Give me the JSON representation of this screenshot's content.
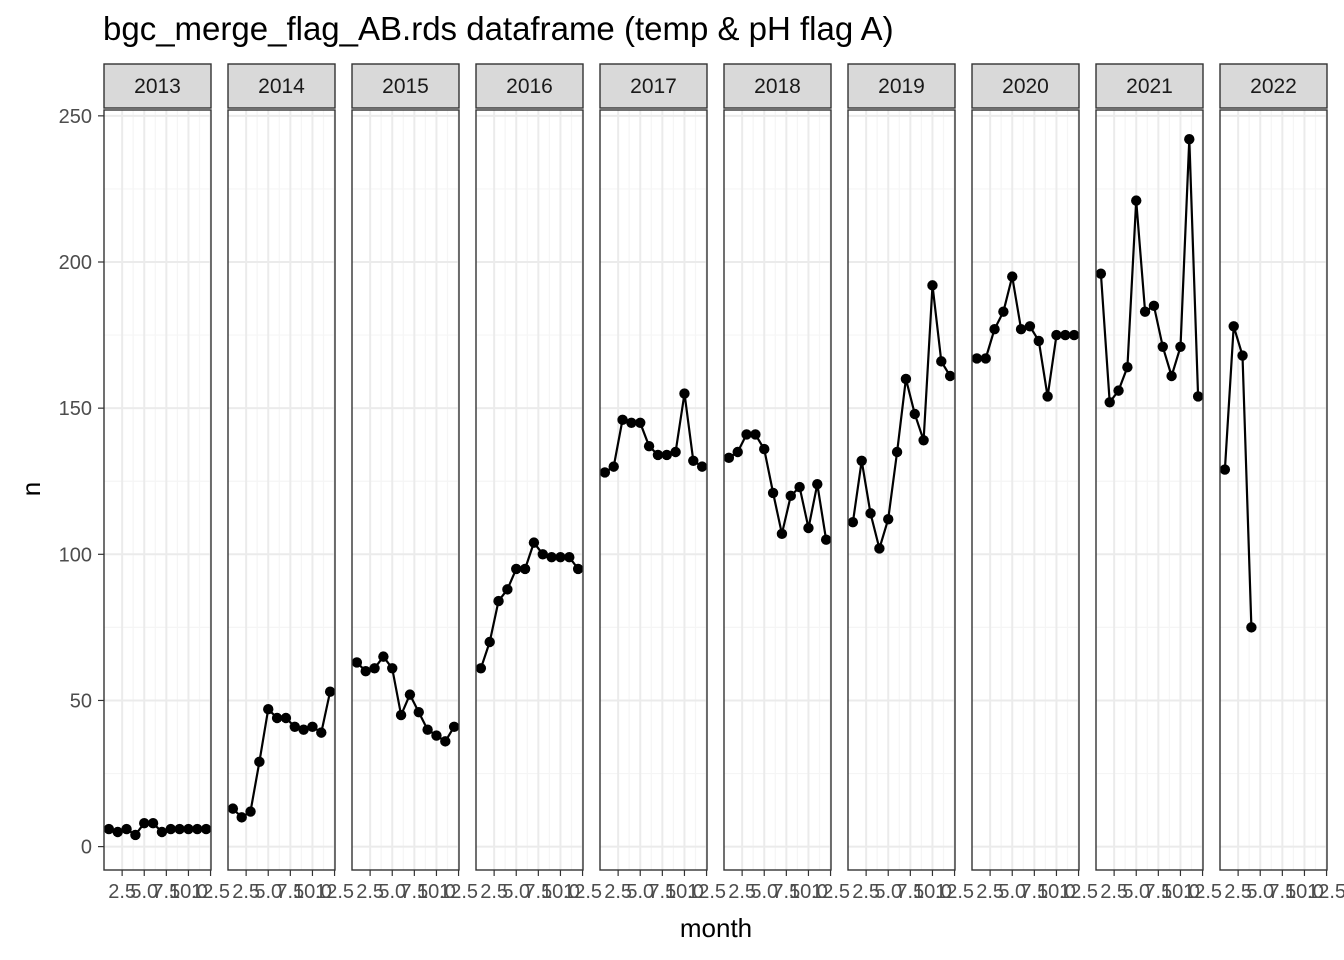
{
  "chart_data": {
    "type": "line",
    "title": "bgc_merge_flag_AB.rds dataframe (temp & pH flag A)",
    "xlabel": "month",
    "ylabel": "n",
    "xlim": [
      0.45,
      12.55
    ],
    "ylim": [
      -8,
      252
    ],
    "x_ticks": [
      2.5,
      5.0,
      7.5,
      10.0,
      12.5
    ],
    "x_tick_labels": [
      "2.5",
      "5.0",
      "7.5",
      "10.0",
      "12.5"
    ],
    "y_ticks": [
      0,
      50,
      100,
      150,
      200,
      250
    ],
    "y_tick_labels": [
      "0",
      "50",
      "100",
      "150",
      "200",
      "250"
    ],
    "grid": true,
    "facet_by": "year",
    "panels": [
      {
        "label": "2013",
        "x": [
          1,
          2,
          3,
          4,
          5,
          6,
          7,
          8,
          9,
          10,
          11,
          12
        ],
        "values": [
          6,
          5,
          6,
          4,
          8,
          8,
          5,
          6,
          6,
          6,
          6,
          6
        ]
      },
      {
        "label": "2014",
        "x": [
          1,
          2,
          3,
          4,
          5,
          6,
          7,
          8,
          9,
          10,
          11,
          12
        ],
        "values": [
          13,
          10,
          12,
          29,
          47,
          44,
          44,
          41,
          40,
          41,
          39,
          53
        ]
      },
      {
        "label": "2015",
        "x": [
          1,
          2,
          3,
          4,
          5,
          6,
          7,
          8,
          9,
          10,
          11,
          12
        ],
        "values": [
          63,
          60,
          61,
          65,
          61,
          45,
          52,
          46,
          40,
          38,
          36,
          41
        ]
      },
      {
        "label": "2016",
        "x": [
          1,
          2,
          3,
          4,
          5,
          6,
          7,
          8,
          9,
          10,
          11,
          12
        ],
        "values": [
          61,
          70,
          84,
          88,
          95,
          95,
          104,
          100,
          99,
          99,
          99,
          95
        ]
      },
      {
        "label": "2017",
        "x": [
          1,
          2,
          3,
          4,
          5,
          6,
          7,
          8,
          9,
          10,
          11,
          12
        ],
        "values": [
          128,
          130,
          146,
          145,
          145,
          137,
          134,
          134,
          135,
          155,
          132,
          130
        ]
      },
      {
        "label": "2018",
        "x": [
          1,
          2,
          3,
          4,
          5,
          6,
          7,
          8,
          9,
          10,
          11,
          12
        ],
        "values": [
          133,
          135,
          141,
          141,
          136,
          121,
          107,
          120,
          123,
          109,
          124,
          105
        ]
      },
      {
        "label": "2019",
        "x": [
          1,
          2,
          3,
          4,
          5,
          6,
          7,
          8,
          9,
          10,
          11,
          12
        ],
        "values": [
          111,
          132,
          114,
          102,
          112,
          135,
          160,
          148,
          139,
          192,
          166,
          161
        ]
      },
      {
        "label": "2020",
        "x": [
          1,
          2,
          3,
          4,
          5,
          6,
          7,
          8,
          9,
          10,
          11,
          12
        ],
        "values": [
          167,
          167,
          177,
          183,
          195,
          177,
          178,
          173,
          154,
          175,
          175,
          175
        ]
      },
      {
        "label": "2021",
        "x": [
          1,
          2,
          3,
          4,
          5,
          6,
          7,
          8,
          9,
          10,
          11,
          12
        ],
        "values": [
          196,
          152,
          156,
          164,
          221,
          183,
          185,
          171,
          161,
          171,
          242,
          154
        ]
      },
      {
        "label": "2022",
        "x": [
          1,
          2,
          3,
          4
        ],
        "values": [
          129,
          178,
          168,
          75
        ]
      }
    ],
    "colors": {
      "line": "#000000",
      "point": "#000000",
      "grid_major": "#ebebeb",
      "grid_minor": "#f5f5f5",
      "strip_fill": "#d9d9d9",
      "panel_border": "#333333"
    }
  }
}
